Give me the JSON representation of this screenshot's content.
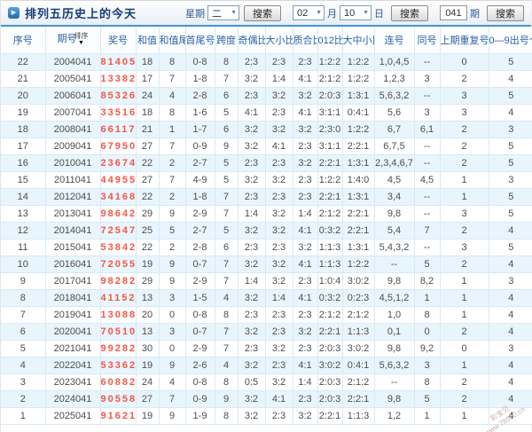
{
  "header": {
    "title": "排列五历史上的今天",
    "icons": {
      "title_bullet": "▶",
      "dropdown_arrow": "▼"
    },
    "week": {
      "label": "星期",
      "selected": "二",
      "search_label": "搜索"
    },
    "date": {
      "month_selected": "02",
      "month_label": "月",
      "day_selected": "10",
      "day_label": "日",
      "search_label": "搜索"
    },
    "issue": {
      "value": "041",
      "label": "期",
      "search_label": "搜索"
    }
  },
  "table": {
    "sort": {
      "label": "排序",
      "arrow": "▼"
    },
    "columns": [
      "序号",
      "期号",
      "奖号",
      "和值",
      "和值尾",
      "首尾号",
      "跨度",
      "奇偶比",
      "大小比",
      "质合比",
      "012比",
      "大中小比",
      "连号",
      "同号",
      "上期重复号个数",
      "0—9出号个数"
    ],
    "rows": [
      [
        "22",
        "2004041",
        "81405",
        "18",
        "8",
        "0-8",
        "8",
        "2:3",
        "2:3",
        "2:3",
        "1:2:2",
        "1:2:2",
        "1,0,4,5",
        "--",
        "0",
        "5"
      ],
      [
        "21",
        "2005041",
        "13382",
        "17",
        "7",
        "1-8",
        "7",
        "3:2",
        "1:4",
        "4:1",
        "2:1:2",
        "1:2:2",
        "1,2,3",
        "3",
        "2",
        "4"
      ],
      [
        "20",
        "2006041",
        "85326",
        "24",
        "4",
        "2-8",
        "6",
        "2:3",
        "3:2",
        "3:2",
        "2:0:3",
        "1:3:1",
        "5,6,3,2",
        "--",
        "3",
        "5"
      ],
      [
        "19",
        "2007041",
        "33516",
        "18",
        "8",
        "1-6",
        "5",
        "4:1",
        "2:3",
        "4:1",
        "3:1:1",
        "0:4:1",
        "5,6",
        "3",
        "3",
        "4"
      ],
      [
        "18",
        "2008041",
        "66117",
        "21",
        "1",
        "1-7",
        "6",
        "3:2",
        "3:2",
        "3:2",
        "2:3:0",
        "1:2:2",
        "6,7",
        "6,1",
        "2",
        "3"
      ],
      [
        "17",
        "2009041",
        "67950",
        "27",
        "7",
        "0-9",
        "9",
        "3:2",
        "4:1",
        "2:3",
        "3:1:1",
        "2:2:1",
        "6,7,5",
        "--",
        "2",
        "5"
      ],
      [
        "16",
        "2010041",
        "23674",
        "22",
        "2",
        "2-7",
        "5",
        "2:3",
        "2:3",
        "3:2",
        "2:2:1",
        "1:3:1",
        "2,3,4,6,7",
        "--",
        "2",
        "5"
      ],
      [
        "15",
        "2011041",
        "44955",
        "27",
        "7",
        "4-9",
        "5",
        "3:2",
        "3:2",
        "2:3",
        "1:2:2",
        "1:4:0",
        "4,5",
        "4,5",
        "1",
        "3"
      ],
      [
        "14",
        "2012041",
        "34168",
        "22",
        "2",
        "1-8",
        "7",
        "2:3",
        "2:3",
        "2:3",
        "2:2:1",
        "1:3:1",
        "3,4",
        "--",
        "1",
        "5"
      ],
      [
        "13",
        "2013041",
        "98642",
        "29",
        "9",
        "2-9",
        "7",
        "1:4",
        "3:2",
        "1:4",
        "2:1:2",
        "2:2:1",
        "9,8",
        "--",
        "3",
        "5"
      ],
      [
        "12",
        "2014041",
        "72547",
        "25",
        "5",
        "2-7",
        "5",
        "3:2",
        "3:2",
        "4:1",
        "0:3:2",
        "2:2:1",
        "5,4",
        "7",
        "2",
        "4"
      ],
      [
        "11",
        "2015041",
        "53842",
        "22",
        "2",
        "2-8",
        "6",
        "2:3",
        "2:3",
        "3:2",
        "1:1:3",
        "1:3:1",
        "5,4,3,2",
        "--",
        "3",
        "5"
      ],
      [
        "10",
        "2016041",
        "72055",
        "19",
        "9",
        "0-7",
        "7",
        "3:2",
        "3:2",
        "4:1",
        "1:1:3",
        "1:2:2",
        "--",
        "5",
        "2",
        "4"
      ],
      [
        "9",
        "2017041",
        "98282",
        "29",
        "9",
        "2-9",
        "7",
        "1:4",
        "3:2",
        "2:3",
        "1:0:4",
        "3:0:2",
        "9,8",
        "8,2",
        "1",
        "3"
      ],
      [
        "8",
        "2018041",
        "41152",
        "13",
        "3",
        "1-5",
        "4",
        "3:2",
        "1:4",
        "4:1",
        "0:3:2",
        "0:2:3",
        "4,5,1,2",
        "1",
        "1",
        "4"
      ],
      [
        "7",
        "2019041",
        "13088",
        "20",
        "0",
        "0-8",
        "8",
        "2:3",
        "2:3",
        "2:3",
        "2:1:2",
        "2:1:2",
        "1,0",
        "8",
        "1",
        "4"
      ],
      [
        "6",
        "2020041",
        "70510",
        "13",
        "3",
        "0-7",
        "7",
        "3:2",
        "2:3",
        "3:2",
        "2:2:1",
        "1:1:3",
        "0,1",
        "0",
        "2",
        "4"
      ],
      [
        "5",
        "2021041",
        "99282",
        "30",
        "0",
        "2-9",
        "7",
        "2:3",
        "3:2",
        "2:3",
        "2:0:3",
        "3:0:2",
        "9,8",
        "9,2",
        "0",
        "3"
      ],
      [
        "4",
        "2022041",
        "53362",
        "19",
        "9",
        "2-6",
        "4",
        "3:2",
        "2:3",
        "4:1",
        "3:0:2",
        "0:4:1",
        "5,6,3,2",
        "3",
        "1",
        "4"
      ],
      [
        "3",
        "2023041",
        "60882",
        "24",
        "4",
        "0-8",
        "8",
        "0:5",
        "3:2",
        "1:4",
        "2:0:3",
        "2:1:2",
        "--",
        "8",
        "2",
        "4"
      ],
      [
        "2",
        "2024041",
        "90558",
        "27",
        "7",
        "0-9",
        "9",
        "3:2",
        "4:1",
        "2:3",
        "2:0:3",
        "2:2:1",
        "9,8",
        "5",
        "2",
        "4"
      ],
      [
        "1",
        "2025041",
        "91621",
        "19",
        "9",
        "1-9",
        "8",
        "3:2",
        "2:3",
        "3:2",
        "2:2:1",
        "1:1:3",
        "1,2",
        "1",
        "1",
        "4"
      ]
    ]
  },
  "watermark": {
    "line1": "彩宝贝",
    "line2": "www.78500.cn"
  },
  "colors": {
    "accent_red": "#f25746",
    "header_blue": "#2f62a8",
    "row_alt": "#e9f5fd",
    "title_navy": "#153e75",
    "bar_line": "#4494d2"
  }
}
